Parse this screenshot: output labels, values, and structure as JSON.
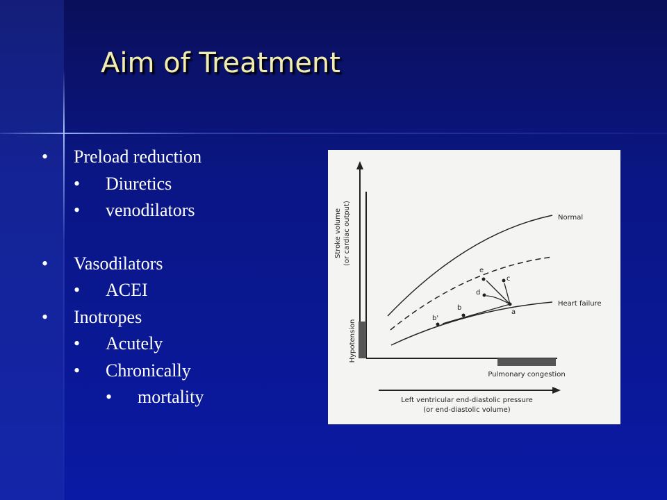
{
  "title": "Aim of Treatment",
  "bullets": [
    {
      "text": "Preload reduction",
      "sub": [
        {
          "text": "Diuretics"
        },
        {
          "text": "venodilators"
        }
      ]
    },
    {
      "text": "Vasodilators",
      "sub": [
        {
          "text": "ACEI"
        }
      ]
    },
    {
      "text": "Inotropes",
      "sub": [
        {
          "text": "Acutely"
        },
        {
          "text": "Chronically",
          "sub": [
            {
              "text": "mortality"
            }
          ]
        }
      ]
    }
  ],
  "figure": {
    "y_axis_label": "Stroke volume",
    "y_axis_sublabel": "(or cardiac output)",
    "x_axis_label": "Left ventricular end-diastolic pressure",
    "x_axis_sublabel": "(or end-diastolic volume)",
    "hypotension": "Hypotension",
    "pulmonary_congestion": "Pulmonary congestion",
    "curve_normal": "Normal",
    "curve_heart_failure": "Heart failure",
    "points": [
      "a",
      "b",
      "b'",
      "c",
      "d",
      "e"
    ]
  }
}
